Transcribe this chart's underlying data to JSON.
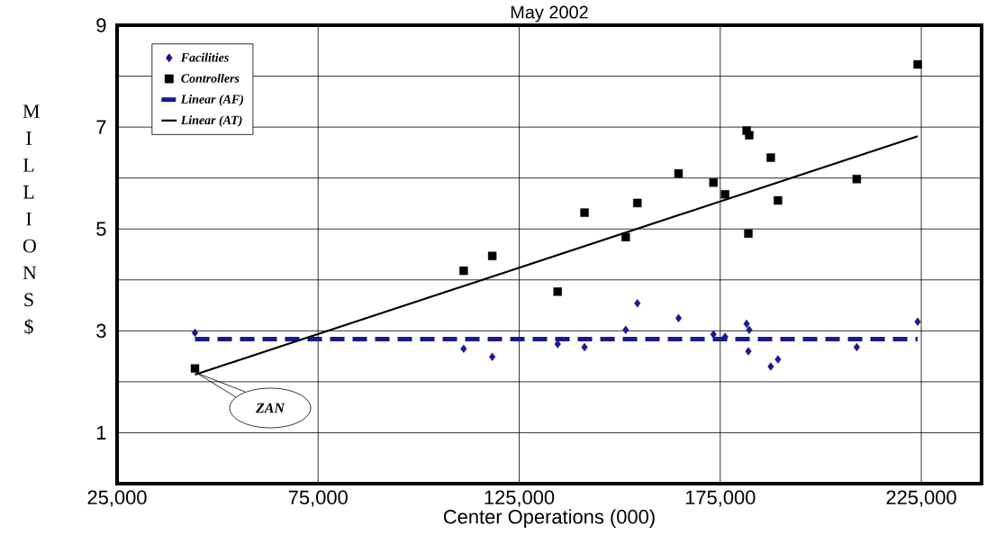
{
  "chart_data": {
    "type": "scatter",
    "title": "May 2002",
    "xlabel": "Center Operations (000)",
    "ylabel": "M I L L I O N S $",
    "xlim": [
      25000,
      240000
    ],
    "ylim": [
      0,
      9
    ],
    "xticks": [
      {
        "value": 25000,
        "label": "25,000"
      },
      {
        "value": 75000,
        "label": "75,000"
      },
      {
        "value": 125000,
        "label": "125,000"
      },
      {
        "value": 175000,
        "label": "175,000"
      },
      {
        "value": 225000,
        "label": "225,000"
      }
    ],
    "yticks": [
      1,
      {
        "value": 2,
        "label": null
      },
      3,
      {
        "value": 4,
        "label": null
      },
      5,
      {
        "value": 6,
        "label": null
      },
      7,
      {
        "value": 8,
        "label": null
      },
      9
    ],
    "grid": true,
    "legend": "top left",
    "annotations": [
      "ZAN"
    ],
    "series": [
      {
        "name": "Facilities",
        "type": "scatter",
        "marker": "diamond",
        "color": "#1a1a8c",
        "x": [
          44376,
          111190,
          118310,
          134570,
          141250,
          151490,
          154390,
          164630,
          173320,
          176210,
          181560,
          182220,
          182000,
          187570,
          189350,
          208950,
          224090
        ],
        "values": [
          2.96,
          2.65,
          2.49,
          2.74,
          2.68,
          3.02,
          3.54,
          3.25,
          2.93,
          2.88,
          3.14,
          3.02,
          2.6,
          2.3,
          2.44,
          2.68,
          3.18
        ]
      },
      {
        "name": "Controllers",
        "type": "scatter",
        "marker": "square",
        "color": "#000000",
        "x": [
          44376,
          111190,
          118310,
          134570,
          141250,
          151490,
          154390,
          164630,
          173320,
          176210,
          181560,
          182220,
          182000,
          187570,
          189350,
          208950,
          224090
        ],
        "values": [
          2.26,
          4.18,
          4.47,
          3.77,
          5.32,
          4.84,
          5.51,
          6.09,
          5.91,
          5.68,
          6.93,
          6.84,
          4.91,
          6.4,
          5.56,
          5.98,
          8.23
        ]
      },
      {
        "name": "Linear (AF)",
        "type": "line",
        "line_style": "dashed",
        "color": "#1a1a8c",
        "x": [
          44376,
          224090
        ],
        "values": [
          2.84,
          2.84
        ]
      },
      {
        "name": "Linear (AT)",
        "type": "line",
        "line_style": "solid",
        "color": "#000000",
        "x": [
          44376,
          224090
        ],
        "values": [
          2.14,
          6.82
        ]
      }
    ]
  }
}
